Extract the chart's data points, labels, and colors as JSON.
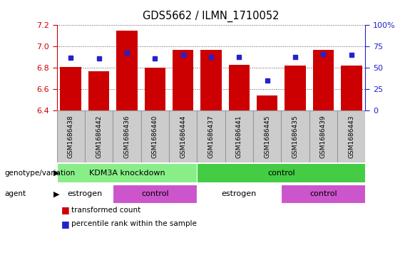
{
  "title": "GDS5662 / ILMN_1710052",
  "samples": [
    "GSM1686438",
    "GSM1686442",
    "GSM1686436",
    "GSM1686440",
    "GSM1686444",
    "GSM1686437",
    "GSM1686441",
    "GSM1686445",
    "GSM1686435",
    "GSM1686439",
    "GSM1686443"
  ],
  "transformed_counts": [
    6.81,
    6.77,
    7.15,
    6.8,
    6.97,
    6.97,
    6.83,
    6.54,
    6.82,
    6.97,
    6.82
  ],
  "percentile_ranks": [
    62,
    61,
    68,
    61,
    65,
    63,
    63,
    35,
    63,
    66,
    65
  ],
  "ylim_left": [
    6.4,
    7.2
  ],
  "ylim_right": [
    0,
    100
  ],
  "yticks_left": [
    6.4,
    6.6,
    6.8,
    7.0,
    7.2
  ],
  "yticks_right": [
    0,
    25,
    50,
    75,
    100
  ],
  "yticklabels_right": [
    "0",
    "25",
    "50",
    "75",
    "100%"
  ],
  "bar_color": "#cc0000",
  "dot_color": "#2222cc",
  "bar_width": 0.75,
  "bar_baseline": 6.4,
  "genotype_groups": [
    {
      "label": "KDM3A knockdown",
      "start": 0,
      "end": 5,
      "color": "#88ee88"
    },
    {
      "label": "control",
      "start": 5,
      "end": 11,
      "color": "#44cc44"
    }
  ],
  "agent_groups": [
    {
      "label": "estrogen",
      "start": 0,
      "end": 2,
      "color": "#ffffff"
    },
    {
      "label": "control",
      "start": 2,
      "end": 5,
      "color": "#cc55cc"
    },
    {
      "label": "estrogen",
      "start": 5,
      "end": 8,
      "color": "#ffffff"
    },
    {
      "label": "control",
      "start": 8,
      "end": 11,
      "color": "#cc55cc"
    }
  ],
  "legend_items": [
    {
      "label": "transformed count",
      "color": "#cc0000"
    },
    {
      "label": "percentile rank within the sample",
      "color": "#2222cc"
    }
  ],
  "tick_color_left": "#cc0000",
  "tick_color_right": "#2222cc",
  "sample_box_color": "#cccccc",
  "sample_box_border": "#999999"
}
